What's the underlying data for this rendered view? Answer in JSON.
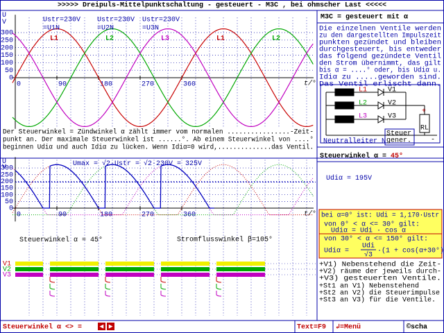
{
  "header": {
    "title": ">>>>>   Dreipuls-Mittelpunktschaltung - gesteuert - M3C , bei ohmscher Last   <<<<<"
  },
  "chart_data": [
    {
      "type": "line",
      "y_axis_label": [
        "U",
        "V"
      ],
      "x_axis_label": "t/°",
      "xlim": [
        -6,
        645
      ],
      "ylim": [
        -340,
        400
      ],
      "xticks": [
        0,
        90,
        180,
        270,
        360
      ],
      "yticks": [
        0,
        50,
        100,
        150,
        200,
        250,
        300
      ],
      "series": [
        {
          "name": "L1",
          "color": "#c80000"
        },
        {
          "name": "L2",
          "color": "#00a800"
        },
        {
          "name": "L3",
          "color": "#c000c0"
        }
      ],
      "phase_labels": [
        "L1",
        "L2",
        "L3",
        "L1",
        "L2"
      ],
      "voltage_labels": [
        [
          "Ustr=230V",
          "=U1N"
        ],
        [
          "Ustr=230V",
          "=U2N"
        ],
        [
          "Ustr=230V",
          "=U3N"
        ]
      ]
    },
    {
      "type": "line",
      "y_axis_label": [
        "U",
        "V"
      ],
      "x_axis_label": "t/°",
      "xlim": [
        -6,
        645
      ],
      "ylim": [
        -100,
        360
      ],
      "xticks": [
        0,
        90,
        180,
        270,
        360
      ],
      "yticks": [
        0,
        50,
        100,
        150,
        200,
        250,
        300
      ],
      "umax": {
        "value": 325,
        "label": "325V"
      },
      "umax_prefix": "Umax = √2·Ustr = √2·230V = ",
      "alpha": {
        "value": 45,
        "label": "45°"
      },
      "alpha_prefix": "Steuerwinkel α = ",
      "beta_text": "Stromflusswinkel β=105°",
      "udi_alpha": {
        "value": 195,
        "label": "195V"
      },
      "udi_prefix": "Udiα = ",
      "valve_labels": [
        "V1",
        "V2",
        "V3"
      ]
    }
  ],
  "text_block": [
    "Der Steuerwinkel = Zündwinkel α zählt immer vom normalen ................-Zeit-",
    "punkt an. Der maximale Steuerwinkel ist ......°. Ab einem Steuerwinkel von ....°",
    "beginnen Udiα und auch Idiα zu lücken. Wenn Idiα=0 wird,..............das Ventil."
  ],
  "right_panel": {
    "title": "M3C = gesteuert mit α",
    "lines": [
      "Die einzelnen Ventile werden",
      "zu den dargestellten Impulszeit",
      "punkten gezündet und bleiben",
      "durchgesteuert, bis entweder",
      "das folgend gezündete Ventil",
      "den Strom übernimmt, das gilt",
      "bis α = ....° oder, bis Udiα u.",
      "Idiα zu .....geworden sind.",
      "Das Ventil erlischt dann."
    ],
    "circuit": {
      "phases": [
        "L1",
        "L2",
        "L3"
      ],
      "valves": [
        "V1",
        "V2",
        "V3"
      ],
      "plus": "+",
      "minus": "-",
      "load": "RL",
      "generator": [
        "Steuer",
        "gener."
      ],
      "neutral": "Neutralleiter N"
    },
    "formula_box": [
      "bei α=0° ist: Udi = 1,170·Ustr",
      "von 0° < α <= 30° gilt:",
      "Udiα = Udi · cos α",
      "von 30° < α <= 150° gilt:",
      "Udiα = ",
      "Udi",
      "√3",
      "·(1 + cos(α+30°))"
    ],
    "valve_notes": [
      "+V1)  Nebenstehend die Zeit-",
      "+V2) räume der jeweils durch-",
      "+V3) gesteuerten Ventile."
    ],
    "pulse_notes": [
      "+St1 an V1) Nebenstehend",
      "+St2 an V2) die Steuerimpulse",
      "+St3 an V3) für die Ventile."
    ]
  },
  "footer": {
    "control": "Steuerwinkel α <> = ",
    "arrows": [
      "◄",
      "►"
    ],
    "text_key": "Text=F9",
    "menu_key": "↲=Menü",
    "copyright": "©scha"
  }
}
